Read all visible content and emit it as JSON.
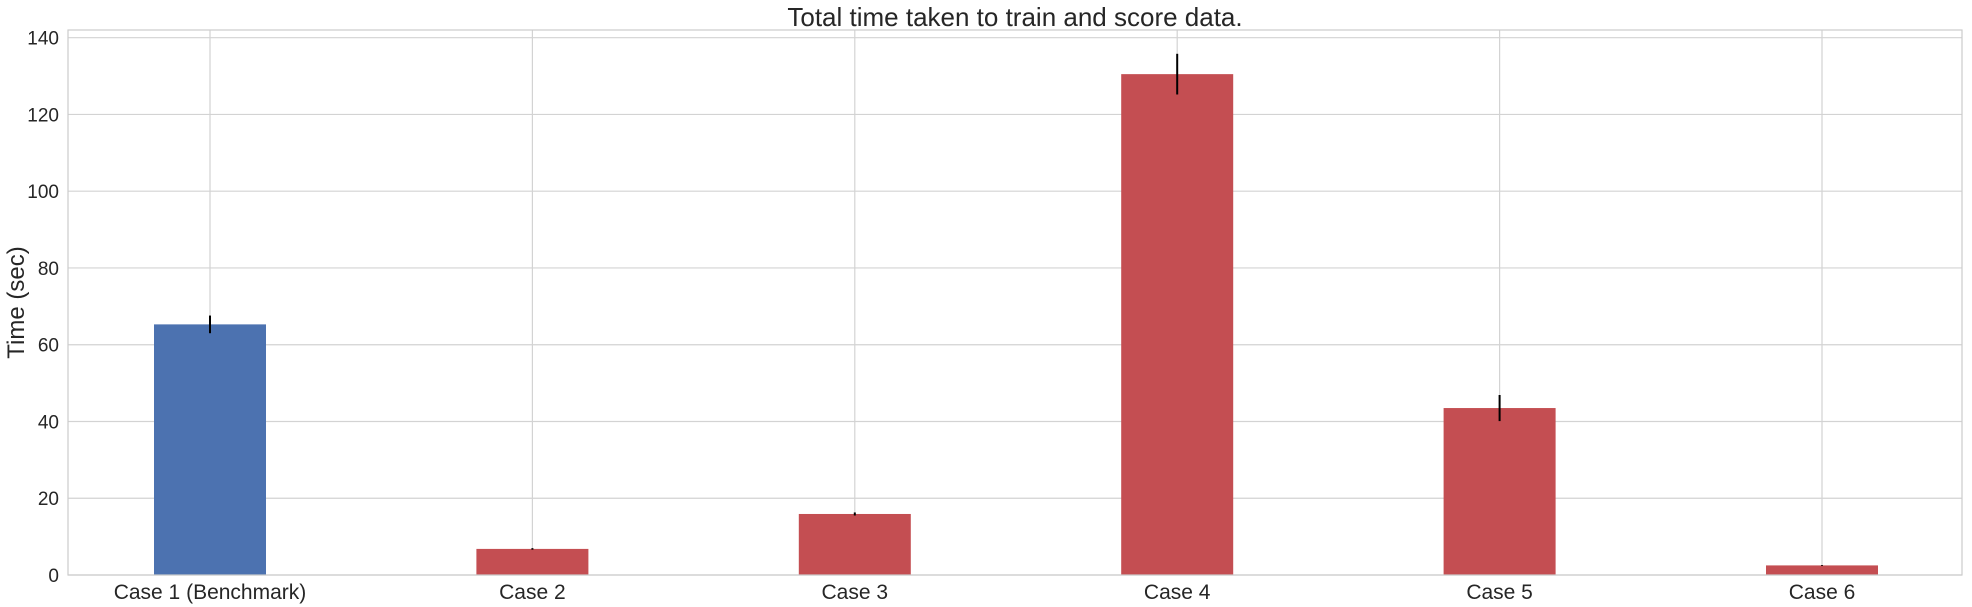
{
  "chart_data": {
    "type": "bar",
    "title": "Total time taken to train and score data.",
    "xlabel": "",
    "ylabel": "Time (sec)",
    "ylim": [
      0,
      142
    ],
    "yticks": [
      0,
      20,
      40,
      60,
      80,
      100,
      120,
      140
    ],
    "ytick_labels": [
      "0",
      "20",
      "40",
      "60",
      "80",
      "100",
      "120",
      "140"
    ],
    "categories": [
      "Case 1 (Benchmark)",
      "Case 2",
      "Case 3",
      "Case 4",
      "Case 5",
      "Case 6"
    ],
    "values": [
      65.3,
      6.8,
      15.9,
      130.5,
      43.5,
      2.5
    ],
    "error": [
      2.3,
      0.2,
      0.4,
      5.3,
      3.4,
      0.1
    ],
    "bar_colors": [
      "#4c72b0",
      "#c44e52",
      "#c44e52",
      "#c44e52",
      "#c44e52",
      "#c44e52"
    ],
    "grid": true,
    "legend": "none"
  }
}
